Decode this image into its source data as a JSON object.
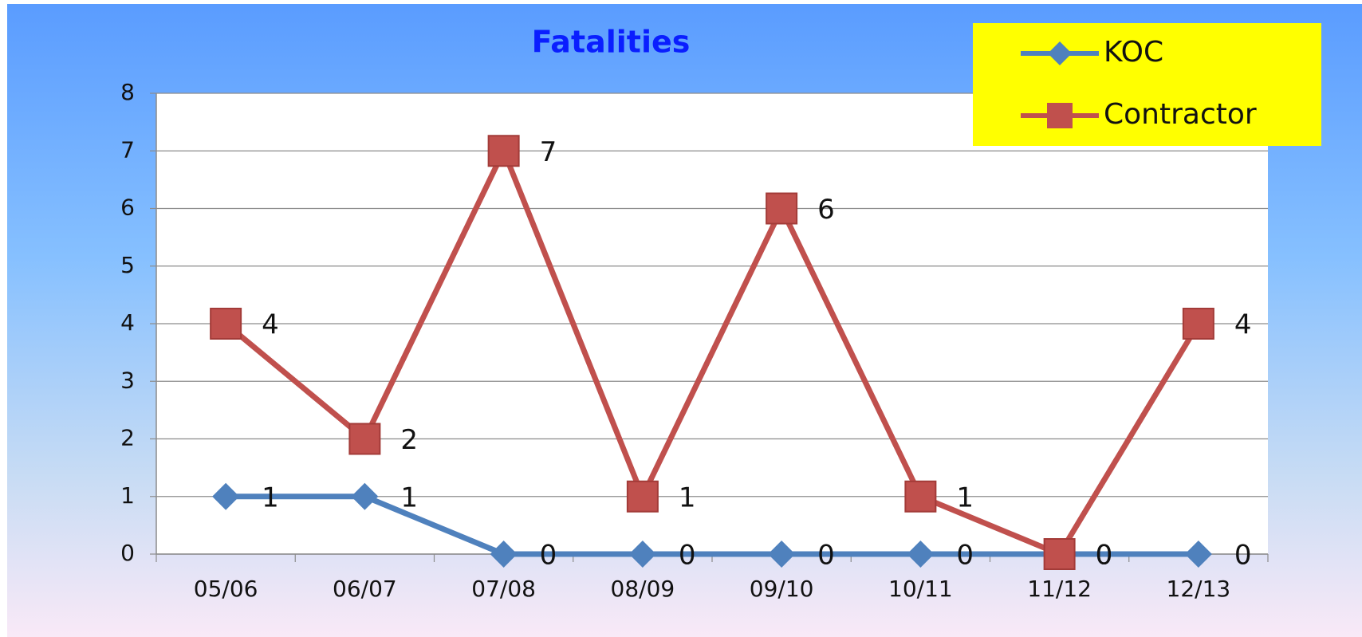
{
  "chart_data": {
    "type": "line",
    "title": "Fatalities",
    "categories": [
      "05/06",
      "06/07",
      "07/08",
      "08/09",
      "09/10",
      "10/11",
      "11/12",
      "12/13"
    ],
    "series": [
      {
        "name": "KOC",
        "color": "#4f81bd",
        "marker": "diamond",
        "values": [
          1,
          1,
          0,
          0,
          0,
          0,
          0,
          0
        ]
      },
      {
        "name": "Contractor",
        "color": "#c0504d",
        "marker": "square",
        "values": [
          4,
          2,
          7,
          1,
          6,
          1,
          0,
          4
        ]
      }
    ],
    "ylim": [
      0,
      8
    ],
    "yticks": [
      0,
      1,
      2,
      3,
      4,
      5,
      6,
      7,
      8
    ],
    "grid": true,
    "legend": "top-right"
  }
}
